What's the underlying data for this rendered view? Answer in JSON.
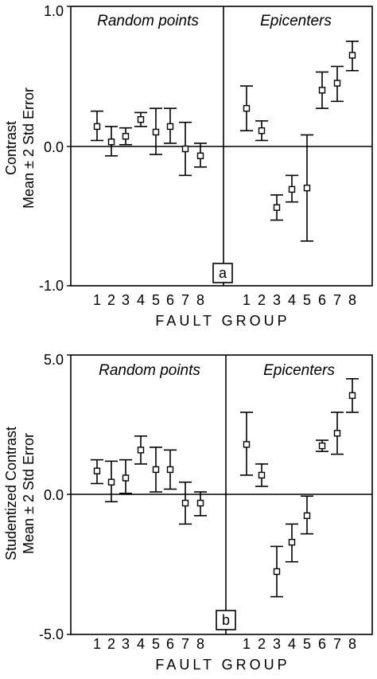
{
  "chart_data": [
    {
      "type": "scatter",
      "panel_label": "a",
      "ylabel_lines": [
        "Contrast",
        "Mean ± 2 Std Error"
      ],
      "xlabel": "FAULT GROUP",
      "ylim": [
        -1.0,
        1.0
      ],
      "yticks": [
        "1.0",
        "0.0",
        "-1.0"
      ],
      "ytick_values": [
        1.0,
        0.0,
        -1.0
      ],
      "groups": [
        {
          "title": "Random points",
          "categories": [
            "1",
            "2",
            "3",
            "4",
            "5",
            "6",
            "7",
            "8"
          ],
          "means": [
            0.14,
            0.03,
            0.07,
            0.19,
            0.1,
            0.14,
            -0.02,
            -0.07
          ],
          "lower": [
            0.04,
            -0.07,
            0.01,
            0.14,
            -0.06,
            0.02,
            -0.21,
            -0.15
          ],
          "upper": [
            0.25,
            0.14,
            0.13,
            0.24,
            0.27,
            0.27,
            0.17,
            0.02
          ]
        },
        {
          "title": "Epicenters",
          "categories": [
            "1",
            "2",
            "3",
            "4",
            "5",
            "6",
            "7",
            "8"
          ],
          "means": [
            0.27,
            0.11,
            -0.44,
            -0.31,
            -0.3,
            0.4,
            0.45,
            0.65
          ],
          "lower": [
            0.11,
            0.04,
            -0.53,
            -0.4,
            -0.68,
            0.27,
            0.32,
            0.54
          ],
          "upper": [
            0.43,
            0.18,
            -0.35,
            -0.21,
            0.08,
            0.53,
            0.57,
            0.75
          ]
        }
      ]
    },
    {
      "type": "scatter",
      "panel_label": "b",
      "ylabel_lines": [
        "Studentized Contrast",
        "Mean ± 2 Std Error"
      ],
      "xlabel": "FAULT GROUP",
      "ylim": [
        -5.0,
        5.0
      ],
      "yticks": [
        "5.0",
        "0.0",
        "-5.0"
      ],
      "ytick_values": [
        5.0,
        0.0,
        -5.0
      ],
      "groups": [
        {
          "title": "Random points",
          "categories": [
            "1",
            "2",
            "3",
            "4",
            "5",
            "6",
            "7",
            "8"
          ],
          "means": [
            0.85,
            0.45,
            0.6,
            1.6,
            0.9,
            0.9,
            -0.3,
            -0.3
          ],
          "lower": [
            0.4,
            -0.25,
            0.05,
            1.1,
            0.1,
            0.2,
            -1.05,
            -0.75
          ],
          "upper": [
            1.25,
            1.2,
            1.25,
            2.1,
            1.7,
            1.6,
            0.45,
            0.1
          ]
        },
        {
          "title": "Epicenters",
          "categories": [
            "1",
            "2",
            "3",
            "4",
            "5",
            "6",
            "7",
            "8"
          ],
          "means": [
            1.8,
            0.7,
            -2.75,
            -1.7,
            -0.75,
            1.75,
            2.2,
            3.55
          ],
          "lower": [
            0.7,
            0.3,
            -3.65,
            -2.4,
            -1.4,
            1.55,
            1.45,
            2.95
          ],
          "upper": [
            2.95,
            1.1,
            -1.85,
            -1.05,
            -0.05,
            1.95,
            2.95,
            4.15
          ]
        }
      ]
    }
  ]
}
